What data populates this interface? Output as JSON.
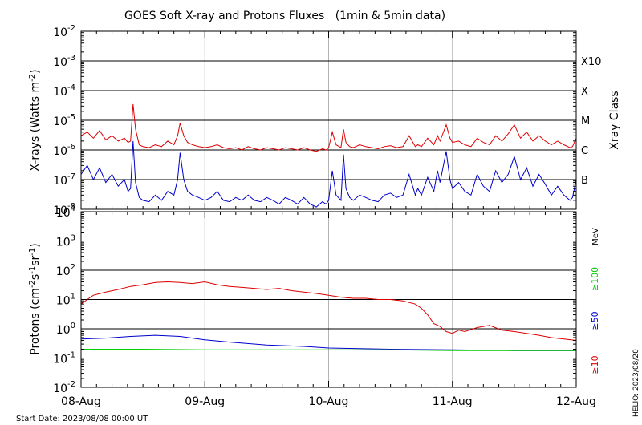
{
  "title": "GOES Soft X-ray and Protons Fluxes   (1min & 5min data)",
  "footer": {
    "start_date": "Start Date: 2023/08/08 00:00 UT",
    "credit": "HELIO: 2023/08/20"
  },
  "chart_data": [
    {
      "type": "line",
      "title": "",
      "ylabel_html": "X-rays (Watts m<tspan baseline-shift=\"super\" font-size=\"10\">-2</tspan>)",
      "ylabel": "X-rays (Watts m-2)",
      "yscale": "log",
      "ylim": [
        1e-08,
        0.01
      ],
      "ytick_exponents": [
        -8,
        -7,
        -6,
        -5,
        -4,
        -3,
        -2
      ],
      "grid": true,
      "right_axis_label": "Xray Class",
      "xray_classes": [
        {
          "label": "X10",
          "flux": 0.001
        },
        {
          "label": "X",
          "flux": 0.0001
        },
        {
          "label": "M",
          "flux": 1e-05
        },
        {
          "label": "C",
          "flux": 1e-06
        },
        {
          "label": "B",
          "flux": 1e-07
        }
      ],
      "x_days": [
        "08-Aug",
        "09-Aug",
        "10-Aug",
        "11-Aug",
        "12-Aug"
      ],
      "series": [
        {
          "color": "#dd0000",
          "x": [
            0,
            0.05,
            0.1,
            0.15,
            0.2,
            0.25,
            0.3,
            0.35,
            0.38,
            0.4,
            0.42,
            0.44,
            0.47,
            0.5,
            0.55,
            0.6,
            0.65,
            0.7,
            0.75,
            0.78,
            0.8,
            0.83,
            0.86,
            0.9,
            0.95,
            1.0,
            1.05,
            1.1,
            1.15,
            1.2,
            1.25,
            1.3,
            1.35,
            1.4,
            1.45,
            1.5,
            1.55,
            1.6,
            1.65,
            1.7,
            1.75,
            1.8,
            1.85,
            1.9,
            1.95,
            1.98,
            2.0,
            2.03,
            2.06,
            2.1,
            2.12,
            2.14,
            2.17,
            2.2,
            2.25,
            2.3,
            2.35,
            2.4,
            2.45,
            2.5,
            2.55,
            2.6,
            2.65,
            2.7,
            2.72,
            2.75,
            2.8,
            2.85,
            2.88,
            2.9,
            2.95,
            2.98,
            3.0,
            3.05,
            3.1,
            3.15,
            3.2,
            3.25,
            3.3,
            3.35,
            3.4,
            3.45,
            3.5,
            3.55,
            3.6,
            3.65,
            3.7,
            3.75,
            3.8,
            3.85,
            3.9,
            3.95,
            3.97,
            4.0
          ],
          "y": [
            3e-06,
            4e-06,
            2.5e-06,
            4.5e-06,
            2.2e-06,
            3e-06,
            2e-06,
            2.5e-06,
            1.8e-06,
            2e-06,
            3.5e-05,
            5e-06,
            1.5e-06,
            1.3e-06,
            1.2e-06,
            1.5e-06,
            1.3e-06,
            2e-06,
            1.5e-06,
            3e-06,
            8e-06,
            3e-06,
            1.8e-06,
            1.5e-06,
            1.3e-06,
            1.2e-06,
            1.3e-06,
            1.5e-06,
            1.2e-06,
            1.1e-06,
            1.2e-06,
            1e-06,
            1.3e-06,
            1.1e-06,
            1e-06,
            1.2e-06,
            1.1e-06,
            1e-06,
            1.2e-06,
            1.1e-06,
            1e-06,
            1.2e-06,
            1e-06,
            9e-07,
            1.1e-06,
            1e-06,
            1.2e-06,
            4e-06,
            1.5e-06,
            1.2e-06,
            5e-06,
            1.8e-06,
            1.3e-06,
            1.2e-06,
            1.5e-06,
            1.3e-06,
            1.2e-06,
            1.1e-06,
            1.3e-06,
            1.4e-06,
            1.2e-06,
            1.3e-06,
            3e-06,
            1.3e-06,
            1.5e-06,
            1.3e-06,
            2.5e-06,
            1.5e-06,
            3e-06,
            2e-06,
            7e-06,
            2.5e-06,
            1.8e-06,
            2e-06,
            1.5e-06,
            1.3e-06,
            2.5e-06,
            1.8e-06,
            1.5e-06,
            3e-06,
            2e-06,
            3.5e-06,
            7e-06,
            2.5e-06,
            4e-06,
            2e-06,
            3e-06,
            2e-06,
            1.5e-06,
            2e-06,
            1.5e-06,
            1.2e-06,
            1.3e-06,
            2.5e-06
          ]
        },
        {
          "color": "#0000cc",
          "x": [
            0,
            0.05,
            0.1,
            0.15,
            0.2,
            0.25,
            0.3,
            0.35,
            0.38,
            0.4,
            0.42,
            0.44,
            0.47,
            0.5,
            0.55,
            0.6,
            0.65,
            0.7,
            0.75,
            0.78,
            0.8,
            0.83,
            0.86,
            0.9,
            0.95,
            1.0,
            1.05,
            1.1,
            1.15,
            1.2,
            1.25,
            1.3,
            1.35,
            1.4,
            1.45,
            1.5,
            1.55,
            1.6,
            1.65,
            1.7,
            1.75,
            1.8,
            1.85,
            1.9,
            1.95,
            1.98,
            2.0,
            2.03,
            2.06,
            2.1,
            2.12,
            2.14,
            2.17,
            2.2,
            2.25,
            2.3,
            2.35,
            2.4,
            2.45,
            2.5,
            2.55,
            2.6,
            2.65,
            2.7,
            2.72,
            2.75,
            2.8,
            2.85,
            2.88,
            2.9,
            2.95,
            2.98,
            3.0,
            3.05,
            3.1,
            3.15,
            3.2,
            3.25,
            3.3,
            3.35,
            3.4,
            3.45,
            3.5,
            3.55,
            3.6,
            3.65,
            3.7,
            3.75,
            3.8,
            3.85,
            3.9,
            3.95,
            3.97,
            4.0
          ],
          "y": [
            1.5e-07,
            3e-07,
            1e-07,
            2.5e-07,
            8e-08,
            1.5e-07,
            6e-08,
            1e-07,
            4e-08,
            5e-08,
            2e-06,
            8e-08,
            2.5e-08,
            2e-08,
            1.8e-08,
            3e-08,
            2e-08,
            4e-08,
            3e-08,
            1e-07,
            8e-07,
            1e-07,
            4e-08,
            3e-08,
            2.5e-08,
            2e-08,
            2.5e-08,
            4e-08,
            2e-08,
            1.8e-08,
            2.5e-08,
            2e-08,
            3e-08,
            2e-08,
            1.8e-08,
            2.5e-08,
            2e-08,
            1.5e-08,
            2.5e-08,
            2e-08,
            1.5e-08,
            2.5e-08,
            1.5e-08,
            1.2e-08,
            1.8e-08,
            1.5e-08,
            2e-08,
            2e-07,
            3e-08,
            2e-08,
            7e-07,
            5e-08,
            2.5e-08,
            2e-08,
            3e-08,
            2.5e-08,
            2e-08,
            1.8e-08,
            3e-08,
            3.5e-08,
            2.5e-08,
            3e-08,
            1.5e-07,
            3e-08,
            5e-08,
            3e-08,
            1.2e-07,
            4e-08,
            2e-07,
            8e-08,
            9e-07,
            1e-07,
            5e-08,
            8e-08,
            4e-08,
            3e-08,
            1.5e-07,
            6e-08,
            4e-08,
            2e-07,
            8e-08,
            1.5e-07,
            6e-07,
            1e-07,
            2.5e-07,
            6e-08,
            1.5e-07,
            7e-08,
            3e-08,
            6e-08,
            3e-08,
            2e-08,
            2.5e-08,
            1e-07
          ]
        }
      ]
    },
    {
      "type": "line",
      "title": "",
      "ylabel_html": "Protons (cm<tspan baseline-shift=\"super\" font-size=\"10\">-2</tspan>s<tspan baseline-shift=\"super\" font-size=\"10\">-1</tspan>sr<tspan baseline-shift=\"super\" font-size=\"10\">-1</tspan>)",
      "ylabel": "Protons (cm-2s-1sr-1)",
      "yscale": "log",
      "ylim": [
        0.01,
        10000
      ],
      "ytick_exponents": [
        -2,
        -1,
        0,
        1,
        2,
        3,
        4
      ],
      "grid": true,
      "threshold": 10,
      "right_axis_label": "MeV",
      "x_days": [
        "08-Aug",
        "09-Aug",
        "10-Aug",
        "11-Aug",
        "12-Aug"
      ],
      "series": [
        {
          "name": "≥10",
          "color": "#dd0000",
          "x": [
            0,
            0.05,
            0.1,
            0.2,
            0.3,
            0.4,
            0.5,
            0.6,
            0.7,
            0.8,
            0.9,
            1.0,
            1.1,
            1.2,
            1.3,
            1.4,
            1.5,
            1.6,
            1.7,
            1.8,
            1.9,
            2.0,
            2.1,
            2.2,
            2.3,
            2.4,
            2.5,
            2.6,
            2.7,
            2.75,
            2.8,
            2.85,
            2.9,
            2.95,
            3.0,
            3.05,
            3.1,
            3.2,
            3.3,
            3.4,
            3.5,
            3.6,
            3.7,
            3.8,
            3.9,
            4.0
          ],
          "y": [
            7,
            10,
            14,
            18,
            22,
            28,
            32,
            38,
            40,
            38,
            35,
            40,
            32,
            28,
            26,
            24,
            22,
            24,
            20,
            18,
            16,
            14,
            12,
            11,
            11,
            10,
            10,
            9,
            7,
            5,
            3,
            1.5,
            1.2,
            0.8,
            0.7,
            0.9,
            0.8,
            1.1,
            1.3,
            0.9,
            0.8,
            0.7,
            0.6,
            0.5,
            0.45,
            0.4
          ]
        },
        {
          "name": "≥50",
          "color": "#0000cc",
          "x": [
            0,
            0.2,
            0.4,
            0.6,
            0.8,
            1.0,
            1.2,
            1.5,
            1.8,
            2.0,
            2.5,
            3.0,
            3.5,
            4.0
          ],
          "y": [
            0.45,
            0.48,
            0.55,
            0.6,
            0.55,
            0.42,
            0.35,
            0.28,
            0.25,
            0.22,
            0.2,
            0.19,
            0.18,
            0.18
          ]
        },
        {
          "name": "≥100",
          "color": "#00cc00",
          "x": [
            0,
            0.5,
            1.0,
            1.5,
            2.0,
            2.5,
            3.0,
            3.5,
            4.0
          ],
          "y": [
            0.2,
            0.2,
            0.19,
            0.19,
            0.19,
            0.19,
            0.18,
            0.18,
            0.18
          ]
        }
      ]
    }
  ]
}
